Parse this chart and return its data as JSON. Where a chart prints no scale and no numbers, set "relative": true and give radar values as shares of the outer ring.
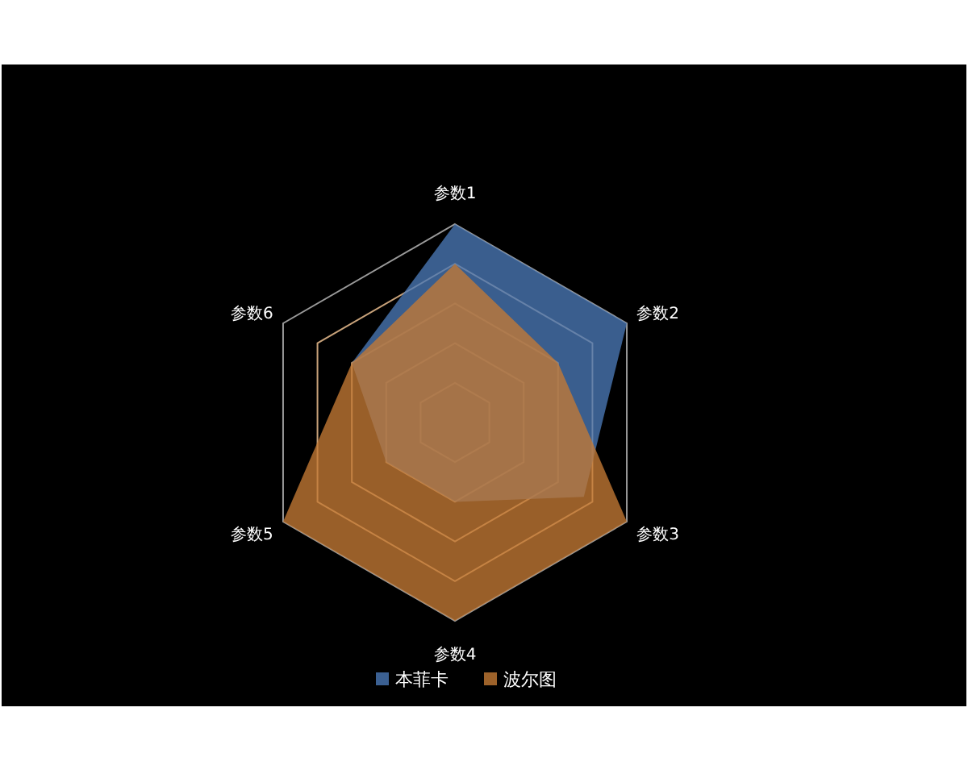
{
  "chart_data": {
    "type": "radar",
    "relative": true,
    "grid": true,
    "legend": "bottom",
    "categories": [
      "参数1",
      "参数2",
      "参数3",
      "参数4",
      "参数5",
      "参数6"
    ],
    "series": [
      {
        "name": "本菲卡",
        "color": "#4a78b6",
        "values": [
          1.0,
          1.0,
          0.75,
          0.4,
          0.4,
          0.6
        ]
      },
      {
        "name": "波尔图",
        "color": "#c47a34",
        "values": [
          0.8,
          0.6,
          1.0,
          1.0,
          1.0,
          0.6
        ]
      }
    ]
  }
}
